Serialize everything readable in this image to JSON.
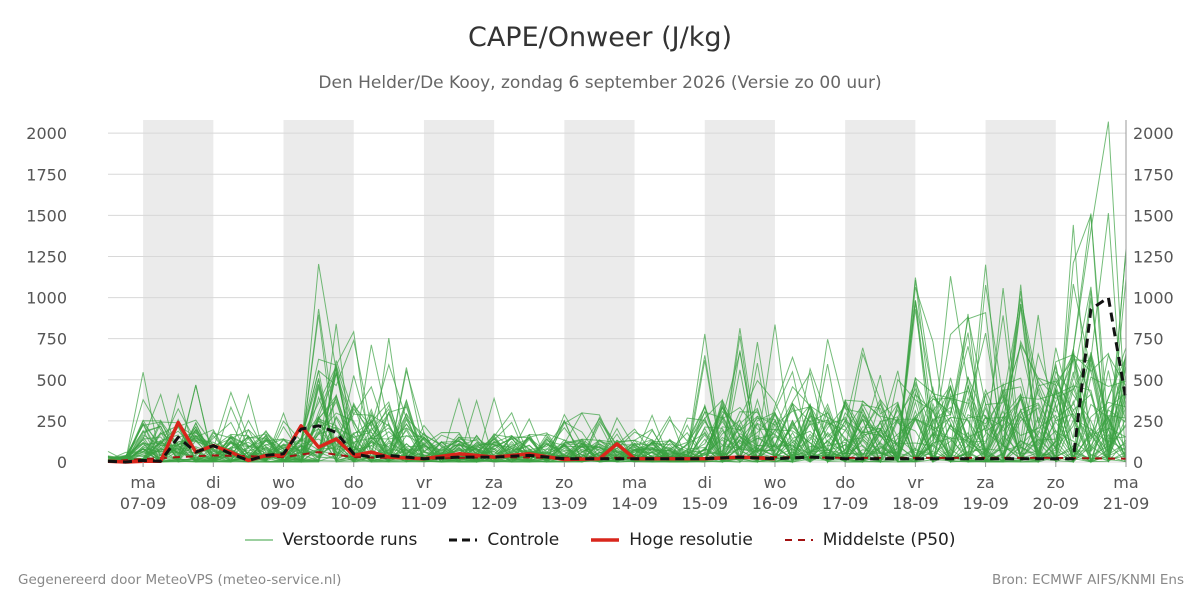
{
  "chart_data": {
    "type": "line",
    "title": "CAPE/Onweer (J/kg)",
    "subtitle": "Den Helder/De Kooy, zondag  6 september 2026 (Versie zo 00 uur)",
    "ylim": [
      0,
      2080
    ],
    "yticks": [
      0,
      250,
      500,
      750,
      1000,
      1250,
      1500,
      1750,
      2000
    ],
    "x_range": [
      "2026-09-06T12:00",
      "2026-09-21T00:00"
    ],
    "x_ticks": [
      {
        "day": "ma",
        "date": "07-09"
      },
      {
        "day": "di",
        "date": "08-09"
      },
      {
        "day": "wo",
        "date": "09-09"
      },
      {
        "day": "do",
        "date": "10-09"
      },
      {
        "day": "vr",
        "date": "11-09"
      },
      {
        "day": "za",
        "date": "12-09"
      },
      {
        "day": "zo",
        "date": "13-09"
      },
      {
        "day": "ma",
        "date": "14-09"
      },
      {
        "day": "di",
        "date": "15-09"
      },
      {
        "day": "wo",
        "date": "16-09"
      },
      {
        "day": "do",
        "date": "17-09"
      },
      {
        "day": "vr",
        "date": "18-09"
      },
      {
        "day": "za",
        "date": "19-09"
      },
      {
        "day": "zo",
        "date": "20-09"
      },
      {
        "day": "ma",
        "date": "21-09"
      }
    ],
    "shaded_days": [
      "07-09",
      "09-09",
      "11-09",
      "13-09",
      "15-09",
      "17-09",
      "19-09"
    ],
    "grid": true,
    "legend_position": "bottom",
    "series": [
      {
        "name": "Controle",
        "color": "#111111",
        "style": "dashed",
        "width": 3,
        "x": [
          "2026-09-06T12:00",
          "2026-09-06T18:00",
          "2026-09-07T00:00",
          "2026-09-07T06:00",
          "2026-09-07T12:00",
          "2026-09-07T18:00",
          "2026-09-08T00:00",
          "2026-09-08T06:00",
          "2026-09-08T12:00",
          "2026-09-08T18:00",
          "2026-09-09T00:00",
          "2026-09-09T06:00",
          "2026-09-09T12:00",
          "2026-09-09T18:00",
          "2026-09-10T00:00",
          "2026-09-10T06:00",
          "2026-09-10T12:00",
          "2026-09-11T00:00",
          "2026-09-11T12:00",
          "2026-09-12T00:00",
          "2026-09-12T12:00",
          "2026-09-13T00:00",
          "2026-09-13T12:00",
          "2026-09-14T00:00",
          "2026-09-14T12:00",
          "2026-09-15T00:00",
          "2026-09-15T12:00",
          "2026-09-16T00:00",
          "2026-09-16T12:00",
          "2026-09-17T00:00",
          "2026-09-17T12:00",
          "2026-09-18T00:00",
          "2026-09-18T12:00",
          "2026-09-19T00:00",
          "2026-09-19T12:00",
          "2026-09-20T00:00",
          "2026-09-20T06:00",
          "2026-09-20T12:00",
          "2026-09-20T18:00",
          "2026-09-21T00:00"
        ],
        "y": [
          5,
          0,
          10,
          5,
          150,
          60,
          100,
          50,
          10,
          40,
          50,
          200,
          220,
          180,
          50,
          30,
          40,
          20,
          30,
          30,
          40,
          20,
          20,
          20,
          20,
          20,
          30,
          20,
          30,
          20,
          20,
          20,
          20,
          20,
          20,
          20,
          20,
          930,
          1000,
          380
        ]
      },
      {
        "name": "Hoge resolutie",
        "color": "#d9261c",
        "style": "solid",
        "width": 3.5,
        "x": [
          "2026-09-06T12:00",
          "2026-09-06T18:00",
          "2026-09-07T00:00",
          "2026-09-07T06:00",
          "2026-09-07T12:00",
          "2026-09-07T18:00",
          "2026-09-08T00:00",
          "2026-09-08T06:00",
          "2026-09-08T12:00",
          "2026-09-08T18:00",
          "2026-09-09T00:00",
          "2026-09-09T06:00",
          "2026-09-09T12:00",
          "2026-09-09T18:00",
          "2026-09-10T00:00",
          "2026-09-10T06:00",
          "2026-09-10T12:00",
          "2026-09-11T00:00",
          "2026-09-11T12:00",
          "2026-09-12T00:00",
          "2026-09-12T12:00",
          "2026-09-13T00:00",
          "2026-09-13T12:00",
          "2026-09-13T18:00",
          "2026-09-14T00:00",
          "2026-09-14T12:00",
          "2026-09-15T00:00",
          "2026-09-15T12:00",
          "2026-09-16T00:00"
        ],
        "y": [
          5,
          0,
          5,
          5,
          240,
          60,
          100,
          60,
          10,
          40,
          40,
          220,
          90,
          140,
          40,
          60,
          30,
          20,
          50,
          30,
          50,
          15,
          20,
          110,
          20,
          20,
          20,
          30,
          20
        ]
      },
      {
        "name": "Middelste (P50)",
        "color": "#a31212",
        "style": "dashed",
        "width": 2,
        "x": [
          "2026-09-06T12:00",
          "2026-09-07T12:00",
          "2026-09-08T00:00",
          "2026-09-09T00:00",
          "2026-09-09T12:00",
          "2026-09-10T00:00",
          "2026-09-11T00:00",
          "2026-09-12T00:00",
          "2026-09-13T00:00",
          "2026-09-14T00:00",
          "2026-09-15T00:00",
          "2026-09-16T00:00",
          "2026-09-17T00:00",
          "2026-09-18T00:00",
          "2026-09-19T00:00",
          "2026-09-20T00:00",
          "2026-09-21T00:00"
        ],
        "y": [
          5,
          30,
          40,
          30,
          60,
          30,
          20,
          30,
          25,
          25,
          25,
          30,
          25,
          25,
          25,
          25,
          20
        ]
      }
    ],
    "ensemble": {
      "name": "Verstoorde runs",
      "color": "#3aa142",
      "members": 50
    }
  },
  "legend": [
    {
      "label": "Verstoorde runs",
      "key": "ensemble"
    },
    {
      "label": "Controle",
      "key": "control"
    },
    {
      "label": "Hoge resolutie",
      "key": "hires"
    },
    {
      "label": "Middelste (P50)",
      "key": "p50"
    }
  ],
  "footer": {
    "left": "Gegenereerd door MeteoVPS (meteo-service.nl)",
    "right": "Bron: ECMWF AIFS/KNMI Ens"
  }
}
